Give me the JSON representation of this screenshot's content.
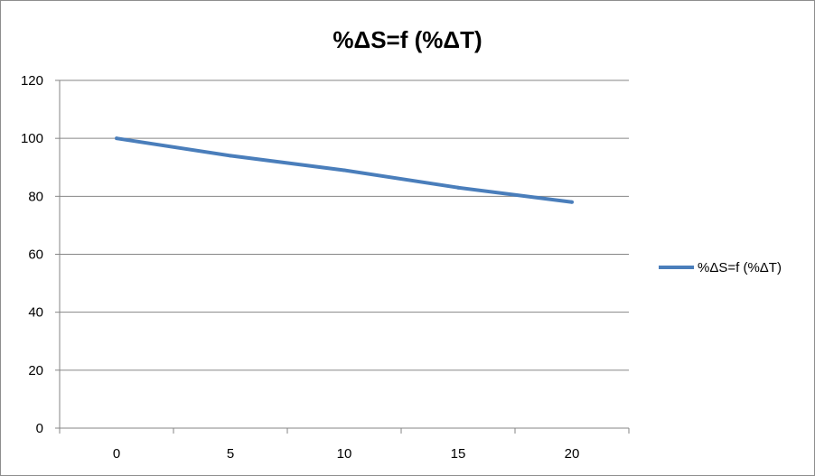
{
  "chart_data": {
    "type": "line",
    "title": "%ΔS=f (%ΔT)",
    "xlabel": "",
    "ylabel": "",
    "x": [
      0,
      5,
      10,
      15,
      20
    ],
    "categories": [
      "0",
      "5",
      "10",
      "15",
      "20"
    ],
    "series": [
      {
        "name": "%ΔS=f (%ΔT)",
        "values": [
          100,
          94,
          89,
          83,
          78
        ],
        "color": "#4a7ebb"
      }
    ],
    "ylim": [
      0,
      120
    ],
    "yticks": [
      0,
      20,
      40,
      60,
      80,
      100,
      120
    ],
    "grid": true,
    "legend_position": "right",
    "colors": {
      "gridline": "#868686",
      "axis": "#868686",
      "frame": "#8e8e8e"
    }
  }
}
